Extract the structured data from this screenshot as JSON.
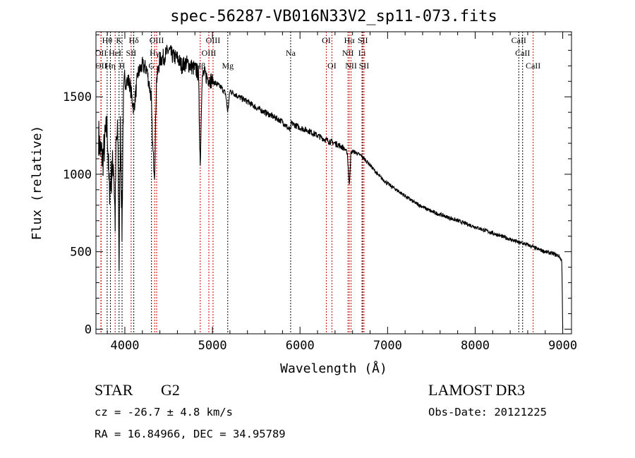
{
  "chart_data": {
    "type": "line",
    "title": "spec-56287-VB016N33V2_sp11-073.fits",
    "xlabel": "Wavelength (Å)",
    "ylabel": "Flux (relative)",
    "xlim": [
      3670,
      9100
    ],
    "ylim": [
      -30,
      1920
    ],
    "xticks": [
      4000,
      5000,
      6000,
      7000,
      8000,
      9000
    ],
    "yticks": [
      0,
      500,
      1000,
      1500
    ],
    "grid": false,
    "series": [
      {
        "name": "flux",
        "x": [
          3700,
          3720,
          3750,
          3780,
          3800,
          3820,
          3850,
          3870,
          3889,
          3900,
          3920,
          3934,
          3950,
          3968,
          3980,
          4000,
          4050,
          4102,
          4150,
          4200,
          4250,
          4300,
          4320,
          4340,
          4360,
          4400,
          4450,
          4500,
          4550,
          4600,
          4650,
          4700,
          4750,
          4800,
          4840,
          4861,
          4880,
          4900,
          4950,
          5000,
          5050,
          5100,
          5150,
          5175,
          5200,
          5300,
          5400,
          5500,
          5600,
          5700,
          5800,
          5893,
          5900,
          6000,
          6100,
          6200,
          6300,
          6400,
          6500,
          6540,
          6563,
          6580,
          6600,
          6700,
          6800,
          6900,
          7000,
          7100,
          7200,
          7300,
          7400,
          7500,
          7600,
          7700,
          7800,
          7900,
          8000,
          8100,
          8200,
          8300,
          8400,
          8500,
          8600,
          8700,
          8800,
          8900,
          8960,
          8990,
          9000
        ],
        "y": [
          1250,
          1150,
          1100,
          1250,
          1300,
          900,
          1000,
          1100,
          700,
          1200,
          1250,
          420,
          1350,
          600,
          1400,
          1600,
          1600,
          1420,
          1650,
          1700,
          1680,
          1500,
          1150,
          1000,
          1600,
          1740,
          1760,
          1800,
          1760,
          1750,
          1700,
          1720,
          1700,
          1680,
          1650,
          1050,
          1620,
          1650,
          1620,
          1600,
          1580,
          1560,
          1520,
          1400,
          1540,
          1500,
          1470,
          1430,
          1400,
          1370,
          1340,
          1280,
          1330,
          1300,
          1280,
          1250,
          1220,
          1200,
          1170,
          1140,
          920,
          1130,
          1150,
          1120,
          1060,
          990,
          940,
          900,
          860,
          820,
          790,
          760,
          740,
          720,
          700,
          680,
          660,
          640,
          620,
          600,
          580,
          560,
          545,
          520,
          500,
          485,
          470,
          440,
          0
        ]
      }
    ],
    "lines": [
      {
        "w": 3727,
        "label": "OII",
        "row": 2,
        "color": "#cc0000"
      },
      {
        "w": 3729,
        "label": "OII",
        "row": 3,
        "color": "#cc0000"
      },
      {
        "w": 3798,
        "label": "Hθ",
        "row": 1,
        "color": "#000000"
      },
      {
        "w": 3835,
        "label": "Hη",
        "row": 3,
        "color": "#000000"
      },
      {
        "w": 3889,
        "label": "HeI",
        "row": 2,
        "color": "#cc0000"
      },
      {
        "w": 3934,
        "label": "K",
        "row": 1,
        "color": "#000000"
      },
      {
        "w": 3968,
        "label": "H",
        "row": 3,
        "color": "#000000"
      },
      {
        "w": 4072,
        "label": "SII",
        "row": 2,
        "color": "#cc0000"
      },
      {
        "w": 4102,
        "label": "Hδ",
        "row": 1,
        "color": "#000000"
      },
      {
        "w": 4304,
        "label": "G",
        "row": 3,
        "color": "#000000"
      },
      {
        "w": 4340,
        "label": "Hγ",
        "row": 2,
        "color": "#cc0000"
      },
      {
        "w": 4363,
        "label": "OIII",
        "row": 1,
        "color": "#cc0000"
      },
      {
        "w": 4861,
        "label": "Hβ",
        "row": 3,
        "color": "#cc0000"
      },
      {
        "w": 4959,
        "label": "OIII",
        "row": 2,
        "color": "#cc0000"
      },
      {
        "w": 5007,
        "label": "OIII",
        "row": 1,
        "color": "#cc0000"
      },
      {
        "w": 5175,
        "label": "Mg",
        "row": 3,
        "color": "#000000"
      },
      {
        "w": 5893,
        "label": "Na",
        "row": 2,
        "color": "#000000"
      },
      {
        "w": 6300,
        "label": "OI",
        "row": 1,
        "color": "#cc0000"
      },
      {
        "w": 6364,
        "label": "OI",
        "row": 3,
        "color": "#cc0000"
      },
      {
        "w": 6548,
        "label": "NII",
        "row": 2,
        "color": "#cc0000"
      },
      {
        "w": 6563,
        "label": "Hα",
        "row": 1,
        "color": "#cc0000"
      },
      {
        "w": 6583,
        "label": "NII",
        "row": 3,
        "color": "#cc0000"
      },
      {
        "w": 6708,
        "label": "Li",
        "row": 2,
        "color": "#000000"
      },
      {
        "w": 6717,
        "label": "SII",
        "row": 1,
        "color": "#cc0000"
      },
      {
        "w": 6731,
        "label": "SII",
        "row": 3,
        "color": "#cc0000"
      },
      {
        "w": 8498,
        "label": "CaII",
        "row": 1,
        "color": "#000000"
      },
      {
        "w": 8542,
        "label": "CaII",
        "row": 2,
        "color": "#000000"
      },
      {
        "w": 8662,
        "label": "CaII",
        "row": 3,
        "color": "#cc0000"
      }
    ]
  },
  "info": {
    "class": "STAR",
    "subclass": "G2",
    "survey": "LAMOST DR3",
    "cz": "cz = -26.7 ± 4.8 km/s",
    "obs_date": "Obs-Date: 20121225",
    "coords": "RA =  16.84966, DEC =  34.95789"
  }
}
